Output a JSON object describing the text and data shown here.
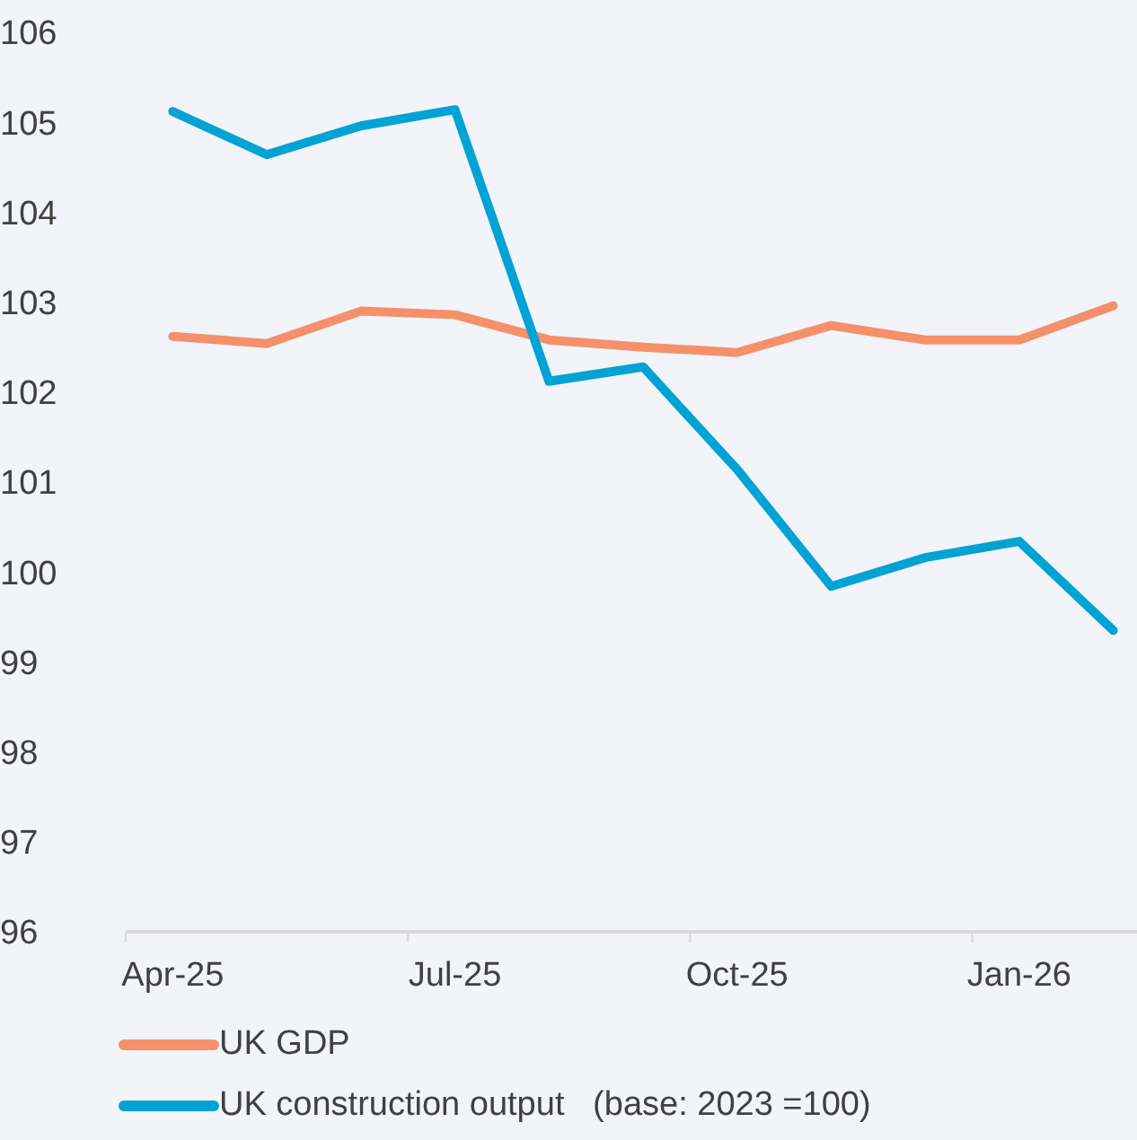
{
  "chart_data": {
    "type": "line",
    "categories": [
      "Apr-25",
      null,
      null,
      "Jul-25",
      null,
      null,
      "Oct-25",
      null,
      null,
      "Jan-26",
      null
    ],
    "series": [
      {
        "name": "UK GDP",
        "color": "#f4916a",
        "values": [
          102.62,
          102.54,
          102.9,
          102.86,
          102.58,
          102.5,
          102.44,
          102.74,
          102.58,
          102.58,
          102.96
        ]
      },
      {
        "name": "UK construction output   (base: 2023 =100)",
        "color": "#00a3d4",
        "values": [
          105.12,
          104.64,
          104.96,
          105.14,
          102.12,
          102.28,
          101.14,
          99.84,
          100.16,
          100.34,
          99.35
        ]
      }
    ],
    "ylim": [
      96,
      106
    ],
    "yticks": [
      96,
      97,
      98,
      99,
      100,
      101,
      102,
      103,
      104,
      105,
      106
    ],
    "grid": false,
    "legend": "bottom",
    "marker": "none",
    "line_style": "solid"
  }
}
